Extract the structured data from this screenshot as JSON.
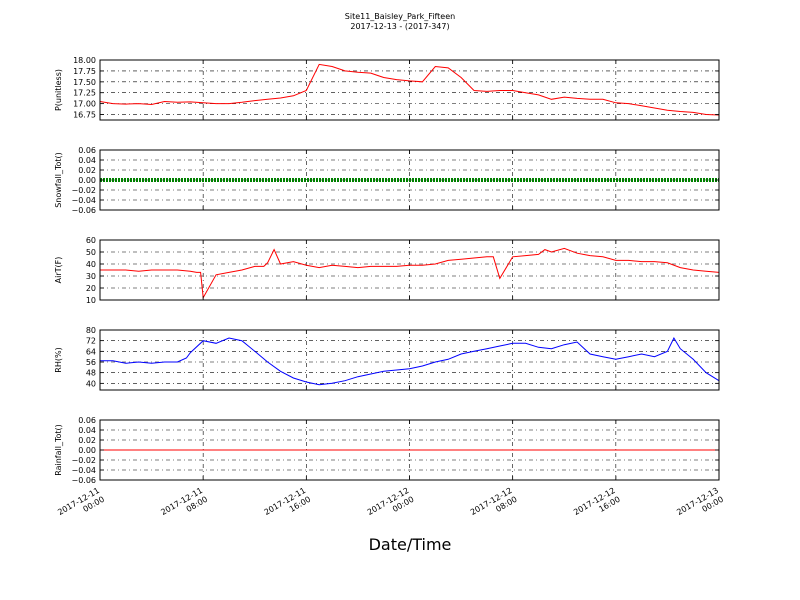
{
  "figure": {
    "title_line1": "Site11_Baisley_Park_Fifteen",
    "title_line2": "2017-12-13 - (2017-347)",
    "xlabel": "Date/Time"
  },
  "chart_data": [
    {
      "type": "line",
      "ylabel": "P(unitless)",
      "ylim": [
        16.625,
        18.0
      ],
      "yticks": [
        16.75,
        17.0,
        17.25,
        17.5,
        17.75,
        18.0
      ],
      "ytick_labels": [
        "16.75",
        "17.00",
        "17.25",
        "17.50",
        "17.75",
        "18.00"
      ],
      "grid": true,
      "series": [
        {
          "color": "#ff0000",
          "x_hours": [
            0,
            1,
            2,
            3,
            4,
            5,
            6,
            7,
            8,
            9,
            10,
            11,
            12,
            13,
            14,
            15,
            16,
            17,
            18,
            19,
            20,
            21,
            22,
            23,
            24,
            25,
            26,
            27,
            28,
            29,
            30,
            31,
            32,
            33,
            34,
            35,
            36,
            37,
            38,
            39,
            40,
            41,
            42,
            43,
            44,
            45,
            46,
            47,
            48
          ],
          "values": [
            17.05,
            17.0,
            16.99,
            17.0,
            16.98,
            17.05,
            17.03,
            17.04,
            17.02,
            17.0,
            17.0,
            17.03,
            17.07,
            17.1,
            17.13,
            17.18,
            17.3,
            17.9,
            17.85,
            17.75,
            17.72,
            17.7,
            17.6,
            17.55,
            17.52,
            17.5,
            17.85,
            17.82,
            17.6,
            17.3,
            17.28,
            17.3,
            17.3,
            17.25,
            17.2,
            17.1,
            17.15,
            17.12,
            17.1,
            17.1,
            17.02,
            17.0,
            16.95,
            16.9,
            16.85,
            16.82,
            16.8,
            16.75,
            16.74
          ]
        }
      ]
    },
    {
      "type": "line",
      "ylabel": "Snowfall_Tot()",
      "ylim": [
        -0.06,
        0.06
      ],
      "yticks": [
        -0.06,
        -0.04,
        -0.02,
        0.0,
        0.02,
        0.04,
        0.06
      ],
      "ytick_labels": [
        "−0.06",
        "−0.04",
        "−0.02",
        "0.00",
        "0.02",
        "0.04",
        "0.06"
      ],
      "grid": true,
      "series": [
        {
          "color": "#008000",
          "x_hours": [
            0,
            48
          ],
          "values": [
            0.0,
            0.0
          ]
        }
      ]
    },
    {
      "type": "line",
      "ylabel": "AirT(F)",
      "ylim": [
        10,
        60
      ],
      "yticks": [
        10,
        20,
        30,
        40,
        50,
        60
      ],
      "ytick_labels": [
        "10",
        "20",
        "30",
        "40",
        "50",
        "60"
      ],
      "grid": true,
      "series": [
        {
          "color": "#ff0000",
          "x_hours": [
            0,
            1,
            2,
            3,
            4,
            5,
            6,
            7,
            7.5,
            7.8,
            8,
            9,
            10,
            11,
            12,
            12.7,
            13,
            13.5,
            14,
            15,
            16,
            17,
            18,
            19,
            20,
            21,
            22,
            23,
            24,
            25,
            26,
            27,
            28,
            29,
            30,
            30.5,
            31,
            32,
            33,
            34,
            34.5,
            35,
            36,
            37,
            38,
            39,
            40,
            41,
            42,
            43,
            44,
            45,
            46,
            47,
            48
          ],
          "values": [
            35,
            35,
            35,
            34,
            35,
            35,
            35,
            34,
            33,
            33,
            12,
            31,
            33,
            35,
            38,
            38,
            41,
            52,
            40,
            42,
            39,
            37,
            39,
            38,
            37,
            38,
            38,
            38,
            39,
            39,
            40,
            43,
            44,
            45,
            46,
            46,
            28,
            46,
            47,
            48,
            52,
            50,
            53,
            49,
            47,
            46,
            43,
            43,
            42,
            42,
            41,
            37,
            35,
            34,
            33
          ]
        }
      ]
    },
    {
      "type": "line",
      "ylabel": "RH(%)",
      "ylim": [
        35,
        80
      ],
      "yticks": [
        40,
        48,
        56,
        64,
        72,
        80
      ],
      "ytick_labels": [
        "40",
        "48",
        "56",
        "64",
        "72",
        "80"
      ],
      "grid": true,
      "series": [
        {
          "color": "#0000ff",
          "x_hours": [
            0,
            1,
            2,
            3,
            4,
            5,
            6,
            6.7,
            7,
            8,
            9,
            10,
            11,
            12,
            13,
            14,
            15,
            16,
            17,
            18,
            19,
            20,
            21,
            22,
            23,
            24,
            25,
            26,
            27,
            28,
            29,
            30,
            31,
            32,
            33,
            34,
            35,
            36,
            37,
            38,
            39,
            40,
            41,
            42,
            43,
            44,
            44.5,
            45,
            46,
            47,
            48
          ],
          "values": [
            57,
            57,
            55,
            56,
            55,
            56,
            56,
            59,
            63,
            72,
            70,
            74,
            72,
            64,
            56,
            49,
            44,
            41,
            39,
            40,
            42,
            45,
            47,
            49,
            50,
            51,
            53,
            56,
            58,
            62,
            64,
            66,
            68,
            70,
            70,
            67,
            66,
            69,
            71,
            62,
            60,
            58,
            60,
            62,
            60,
            64,
            74,
            66,
            58,
            48,
            42
          ]
        }
      ]
    },
    {
      "type": "line",
      "ylabel": "Rainfall_Tot()",
      "ylim": [
        -0.06,
        0.06
      ],
      "yticks": [
        -0.06,
        -0.04,
        -0.02,
        0.0,
        0.02,
        0.04,
        0.06
      ],
      "ytick_labels": [
        "−0.06",
        "−0.04",
        "−0.02",
        "0.00",
        "0.02",
        "0.04",
        "0.06"
      ],
      "grid": true,
      "series": [
        {
          "color": "#ff0000",
          "x_hours": [
            0,
            48
          ],
          "values": [
            0.0,
            0.0
          ]
        }
      ]
    }
  ],
  "x_axis": {
    "xlim_hours": [
      0,
      48
    ],
    "ticks_hours": [
      0,
      8,
      16,
      24,
      32,
      40,
      48
    ],
    "tick_labels_line1": [
      "2017-12-11",
      "2017-12-11",
      "2017-12-11",
      "2017-12-12",
      "2017-12-12",
      "2017-12-12",
      "2017-12-13"
    ],
    "tick_labels_line2": [
      "00:00",
      "08:00",
      "16:00",
      "00:00",
      "08:00",
      "16:00",
      "00:00"
    ]
  }
}
